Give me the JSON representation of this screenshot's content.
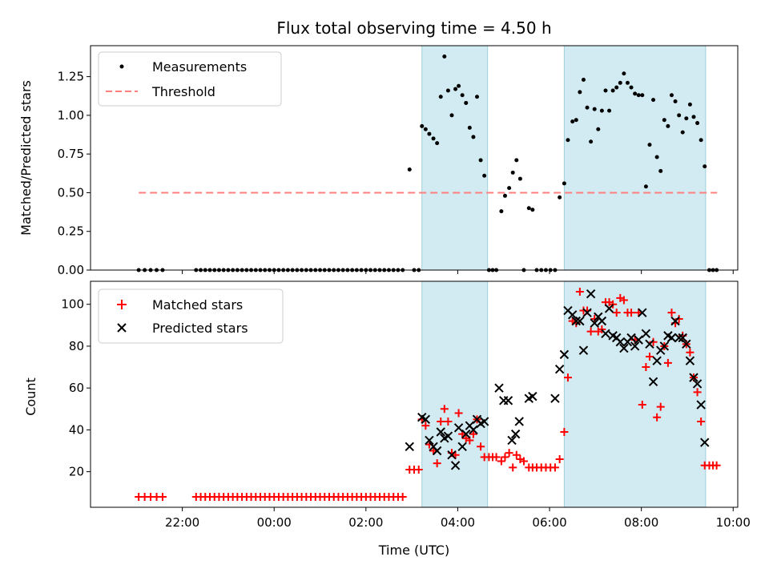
{
  "chart_data": {
    "type": "scatter",
    "title": "Flux total observing time = 4.50 h",
    "xlabel": "Time (UTC)",
    "x_units": "hours relative to 00:00 UTC",
    "x_range": [
      -4.0,
      10.1
    ],
    "x_ticks": [
      {
        "value": -2,
        "label": "22:00"
      },
      {
        "value": 0,
        "label": "00:00"
      },
      {
        "value": 2,
        "label": "02:00"
      },
      {
        "value": 4,
        "label": "04:00"
      },
      {
        "value": 6,
        "label": "06:00"
      },
      {
        "value": 8,
        "label": "08:00"
      },
      {
        "value": 10,
        "label": "10:00"
      }
    ],
    "shaded_regions": [
      [
        3.22,
        4.65
      ],
      [
        6.32,
        9.4
      ]
    ],
    "colors": {
      "shade": "#add8e6",
      "measurement": "#000000",
      "threshold": "#ff7f7f",
      "matched": "#ff0000",
      "predicted": "#000000"
    },
    "top_panel": {
      "ylabel": "Matched/Predicted stars",
      "ylim": [
        0,
        1.45
      ],
      "y_ticks": [
        0.0,
        0.25,
        0.5,
        0.75,
        1.0,
        1.25
      ],
      "y_tick_labels": [
        "0.00",
        "0.25",
        "0.50",
        "0.75",
        "1.00",
        "1.25"
      ],
      "legend": [
        "Measurements",
        "Threshold"
      ],
      "legend_position": "upper-left",
      "threshold": {
        "value": 0.5,
        "x_range": [
          -2.95,
          9.65
        ]
      },
      "measurements": [
        [
          -2.95,
          0
        ],
        [
          -2.82,
          0
        ],
        [
          -2.69,
          0
        ],
        [
          -2.56,
          0
        ],
        [
          -2.43,
          0
        ],
        [
          -1.7,
          0
        ],
        [
          -1.6,
          0
        ],
        [
          -1.5,
          0
        ],
        [
          -1.4,
          0
        ],
        [
          -1.3,
          0
        ],
        [
          -1.2,
          0
        ],
        [
          -1.1,
          0
        ],
        [
          -1.0,
          0
        ],
        [
          -0.9,
          0
        ],
        [
          -0.8,
          0
        ],
        [
          -0.7,
          0
        ],
        [
          -0.6,
          0
        ],
        [
          -0.5,
          0
        ],
        [
          -0.4,
          0
        ],
        [
          -0.3,
          0
        ],
        [
          -0.2,
          0
        ],
        [
          -0.1,
          0
        ],
        [
          0.0,
          0
        ],
        [
          0.1,
          0
        ],
        [
          0.2,
          0
        ],
        [
          0.3,
          0
        ],
        [
          0.4,
          0
        ],
        [
          0.5,
          0
        ],
        [
          0.6,
          0
        ],
        [
          0.7,
          0
        ],
        [
          0.8,
          0
        ],
        [
          0.9,
          0
        ],
        [
          1.0,
          0
        ],
        [
          1.1,
          0
        ],
        [
          1.2,
          0
        ],
        [
          1.3,
          0
        ],
        [
          1.4,
          0
        ],
        [
          1.5,
          0
        ],
        [
          1.6,
          0
        ],
        [
          1.7,
          0
        ],
        [
          1.8,
          0
        ],
        [
          1.9,
          0
        ],
        [
          2.0,
          0
        ],
        [
          2.1,
          0
        ],
        [
          2.2,
          0
        ],
        [
          2.3,
          0
        ],
        [
          2.4,
          0
        ],
        [
          2.5,
          0
        ],
        [
          2.6,
          0
        ],
        [
          2.7,
          0
        ],
        [
          2.8,
          0
        ],
        [
          2.95,
          0.65
        ],
        [
          3.05,
          0
        ],
        [
          3.15,
          0
        ],
        [
          3.22,
          0.93
        ],
        [
          3.3,
          0.91
        ],
        [
          3.38,
          0.88
        ],
        [
          3.47,
          0.85
        ],
        [
          3.55,
          0.82
        ],
        [
          3.63,
          1.12
        ],
        [
          3.71,
          1.38
        ],
        [
          3.79,
          1.16
        ],
        [
          3.87,
          1.0
        ],
        [
          3.95,
          1.17
        ],
        [
          4.02,
          1.19
        ],
        [
          4.1,
          1.13
        ],
        [
          4.18,
          1.08
        ],
        [
          4.26,
          0.92
        ],
        [
          4.34,
          0.86
        ],
        [
          4.42,
          1.12
        ],
        [
          4.5,
          0.71
        ],
        [
          4.58,
          0.61
        ],
        [
          4.68,
          0
        ],
        [
          4.76,
          0
        ],
        [
          4.84,
          0
        ],
        [
          4.95,
          0.38
        ],
        [
          5.03,
          0.48
        ],
        [
          5.12,
          0.53
        ],
        [
          5.2,
          0.63
        ],
        [
          5.28,
          0.71
        ],
        [
          5.36,
          0.59
        ],
        [
          5.44,
          0
        ],
        [
          5.55,
          0.4
        ],
        [
          5.63,
          0.39
        ],
        [
          5.72,
          0
        ],
        [
          5.82,
          0
        ],
        [
          5.92,
          0
        ],
        [
          6.02,
          0
        ],
        [
          6.12,
          0
        ],
        [
          6.22,
          0.47
        ],
        [
          6.32,
          0.56
        ],
        [
          6.4,
          0.84
        ],
        [
          6.5,
          0.96
        ],
        [
          6.58,
          0.97
        ],
        [
          6.66,
          1.15
        ],
        [
          6.74,
          1.23
        ],
        [
          6.82,
          1.05
        ],
        [
          6.9,
          0.83
        ],
        [
          6.98,
          1.04
        ],
        [
          7.06,
          0.91
        ],
        [
          7.14,
          1.03
        ],
        [
          7.22,
          1.16
        ],
        [
          7.3,
          1.03
        ],
        [
          7.38,
          1.16
        ],
        [
          7.46,
          1.18
        ],
        [
          7.54,
          1.21
        ],
        [
          7.62,
          1.27
        ],
        [
          7.7,
          1.21
        ],
        [
          7.78,
          1.18
        ],
        [
          7.86,
          1.14
        ],
        [
          7.94,
          1.13
        ],
        [
          8.02,
          1.13
        ],
        [
          8.1,
          0.54
        ],
        [
          8.18,
          0.81
        ],
        [
          8.26,
          1.1
        ],
        [
          8.34,
          0.73
        ],
        [
          8.42,
          0.64
        ],
        [
          8.5,
          0.97
        ],
        [
          8.58,
          0.93
        ],
        [
          8.66,
          1.13
        ],
        [
          8.74,
          1.09
        ],
        [
          8.82,
          1.0
        ],
        [
          8.9,
          0.89
        ],
        [
          8.98,
          0.98
        ],
        [
          9.06,
          1.07
        ],
        [
          9.14,
          0.99
        ],
        [
          9.22,
          0.95
        ],
        [
          9.3,
          0.84
        ],
        [
          9.38,
          0.67
        ],
        [
          9.48,
          0
        ],
        [
          9.56,
          0
        ],
        [
          9.64,
          0
        ]
      ]
    },
    "bottom_panel": {
      "ylabel": "Count",
      "ylim": [
        3,
        111
      ],
      "y_ticks": [
        20,
        40,
        60,
        80,
        100
      ],
      "y_tick_labels": [
        "20",
        "40",
        "60",
        "80",
        "100"
      ],
      "legend": [
        "Matched stars",
        "Predicted stars"
      ],
      "legend_position": "upper-left",
      "matched": [
        [
          -2.95,
          8
        ],
        [
          -2.82,
          8
        ],
        [
          -2.69,
          8
        ],
        [
          -2.56,
          8
        ],
        [
          -2.43,
          8
        ],
        [
          -1.7,
          8
        ],
        [
          -1.6,
          8
        ],
        [
          -1.5,
          8
        ],
        [
          -1.4,
          8
        ],
        [
          -1.3,
          8
        ],
        [
          -1.2,
          8
        ],
        [
          -1.1,
          8
        ],
        [
          -1.0,
          8
        ],
        [
          -0.9,
          8
        ],
        [
          -0.8,
          8
        ],
        [
          -0.7,
          8
        ],
        [
          -0.6,
          8
        ],
        [
          -0.5,
          8
        ],
        [
          -0.4,
          8
        ],
        [
          -0.3,
          8
        ],
        [
          -0.2,
          8
        ],
        [
          -0.1,
          8
        ],
        [
          0.0,
          8
        ],
        [
          0.1,
          8
        ],
        [
          0.2,
          8
        ],
        [
          0.3,
          8
        ],
        [
          0.4,
          8
        ],
        [
          0.5,
          8
        ],
        [
          0.6,
          8
        ],
        [
          0.7,
          8
        ],
        [
          0.8,
          8
        ],
        [
          0.9,
          8
        ],
        [
          1.0,
          8
        ],
        [
          1.1,
          8
        ],
        [
          1.2,
          8
        ],
        [
          1.3,
          8
        ],
        [
          1.4,
          8
        ],
        [
          1.5,
          8
        ],
        [
          1.6,
          8
        ],
        [
          1.7,
          8
        ],
        [
          1.8,
          8
        ],
        [
          1.9,
          8
        ],
        [
          2.0,
          8
        ],
        [
          2.1,
          8
        ],
        [
          2.2,
          8
        ],
        [
          2.3,
          8
        ],
        [
          2.4,
          8
        ],
        [
          2.5,
          8
        ],
        [
          2.6,
          8
        ],
        [
          2.7,
          8
        ],
        [
          2.8,
          8
        ],
        [
          2.95,
          21
        ],
        [
          3.05,
          21
        ],
        [
          3.15,
          21
        ],
        [
          3.22,
          45
        ],
        [
          3.3,
          42
        ],
        [
          3.38,
          33
        ],
        [
          3.47,
          30
        ],
        [
          3.55,
          24
        ],
        [
          3.63,
          44
        ],
        [
          3.71,
          50
        ],
        [
          3.79,
          44
        ],
        [
          3.87,
          29
        ],
        [
          3.95,
          28
        ],
        [
          4.02,
          48
        ],
        [
          4.1,
          38
        ],
        [
          4.18,
          36
        ],
        [
          4.26,
          35
        ],
        [
          4.34,
          38
        ],
        [
          4.42,
          45
        ],
        [
          4.5,
          32
        ],
        [
          4.58,
          27
        ],
        [
          4.68,
          27
        ],
        [
          4.76,
          27
        ],
        [
          4.84,
          27
        ],
        [
          4.95,
          25
        ],
        [
          5.03,
          27
        ],
        [
          5.12,
          29
        ],
        [
          5.2,
          22
        ],
        [
          5.28,
          28
        ],
        [
          5.36,
          26
        ],
        [
          5.44,
          25
        ],
        [
          5.55,
          22
        ],
        [
          5.63,
          22
        ],
        [
          5.72,
          22
        ],
        [
          5.82,
          22
        ],
        [
          5.92,
          22
        ],
        [
          6.02,
          22
        ],
        [
          6.12,
          22
        ],
        [
          6.22,
          26
        ],
        [
          6.32,
          39
        ],
        [
          6.4,
          65
        ],
        [
          6.5,
          92
        ],
        [
          6.58,
          91
        ],
        [
          6.66,
          106
        ],
        [
          6.74,
          97
        ],
        [
          6.82,
          97
        ],
        [
          6.9,
          87
        ],
        [
          6.98,
          93
        ],
        [
          7.06,
          87
        ],
        [
          7.14,
          88
        ],
        [
          7.22,
          101
        ],
        [
          7.3,
          101
        ],
        [
          7.38,
          100
        ],
        [
          7.46,
          96
        ],
        [
          7.54,
          103
        ],
        [
          7.62,
          102
        ],
        [
          7.7,
          96
        ],
        [
          7.78,
          96
        ],
        [
          7.86,
          83
        ],
        [
          7.94,
          96
        ],
        [
          8.02,
          52
        ],
        [
          8.1,
          70
        ],
        [
          8.18,
          75
        ],
        [
          8.26,
          82
        ],
        [
          8.34,
          46
        ],
        [
          8.42,
          51
        ],
        [
          8.5,
          80
        ],
        [
          8.58,
          72
        ],
        [
          8.66,
          96
        ],
        [
          8.74,
          91
        ],
        [
          8.82,
          93
        ],
        [
          8.9,
          85
        ],
        [
          8.98,
          81
        ],
        [
          9.06,
          77
        ],
        [
          9.14,
          65
        ],
        [
          9.22,
          58
        ],
        [
          9.3,
          44
        ],
        [
          9.38,
          23
        ],
        [
          9.48,
          23
        ],
        [
          9.56,
          23
        ],
        [
          9.64,
          23
        ]
      ],
      "predicted": [
        [
          2.95,
          32
        ],
        [
          3.22,
          46
        ],
        [
          3.3,
          45
        ],
        [
          3.38,
          35
        ],
        [
          3.47,
          32
        ],
        [
          3.55,
          30
        ],
        [
          3.63,
          39
        ],
        [
          3.71,
          36
        ],
        [
          3.79,
          37
        ],
        [
          3.87,
          28
        ],
        [
          3.95,
          23
        ],
        [
          4.02,
          41
        ],
        [
          4.1,
          32
        ],
        [
          4.18,
          38
        ],
        [
          4.26,
          42
        ],
        [
          4.34,
          40
        ],
        [
          4.42,
          45
        ],
        [
          4.5,
          43
        ],
        [
          4.58,
          44
        ],
        [
          4.9,
          60
        ],
        [
          5.0,
          54
        ],
        [
          5.1,
          54
        ],
        [
          5.18,
          35
        ],
        [
          5.26,
          38
        ],
        [
          5.34,
          44
        ],
        [
          5.55,
          55
        ],
        [
          5.63,
          56
        ],
        [
          6.12,
          55
        ],
        [
          6.22,
          69
        ],
        [
          6.32,
          76
        ],
        [
          6.4,
          97
        ],
        [
          6.5,
          95
        ],
        [
          6.58,
          92
        ],
        [
          6.66,
          92
        ],
        [
          6.74,
          78
        ],
        [
          6.82,
          96
        ],
        [
          6.9,
          105
        ],
        [
          6.98,
          91
        ],
        [
          7.06,
          94
        ],
        [
          7.14,
          92
        ],
        [
          7.22,
          86
        ],
        [
          7.3,
          98
        ],
        [
          7.38,
          85
        ],
        [
          7.46,
          84
        ],
        [
          7.54,
          82
        ],
        [
          7.62,
          79
        ],
        [
          7.7,
          82
        ],
        [
          7.78,
          84
        ],
        [
          7.86,
          80
        ],
        [
          7.94,
          83
        ],
        [
          8.02,
          96
        ],
        [
          8.1,
          86
        ],
        [
          8.18,
          81
        ],
        [
          8.26,
          63
        ],
        [
          8.34,
          73
        ],
        [
          8.42,
          78
        ],
        [
          8.5,
          80
        ],
        [
          8.58,
          85
        ],
        [
          8.66,
          84
        ],
        [
          8.74,
          92
        ],
        [
          8.82,
          84
        ],
        [
          8.9,
          84
        ],
        [
          8.98,
          81
        ],
        [
          9.06,
          73
        ],
        [
          9.14,
          65
        ],
        [
          9.22,
          62
        ],
        [
          9.3,
          52
        ],
        [
          9.38,
          34
        ]
      ]
    }
  }
}
